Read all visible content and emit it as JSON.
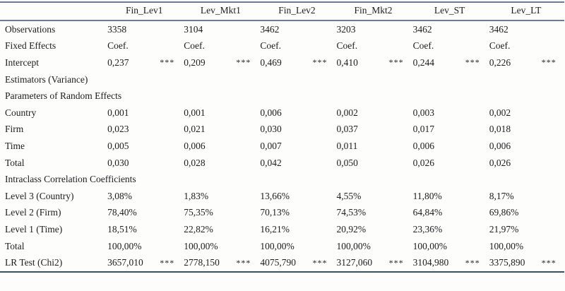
{
  "table": {
    "corner_label": "",
    "columns": [
      "Fin_Lev1",
      "Lev_Mkt1",
      "Fin_Lev2",
      "Fin_Mkt2",
      "Lev_ST",
      "Lev_LT"
    ],
    "rows": [
      {
        "type": "data",
        "label": "Observations",
        "values": [
          "3358",
          "3104",
          "3462",
          "3203",
          "3462",
          "3462"
        ],
        "stars": [
          "",
          "",
          "",
          "",
          "",
          ""
        ]
      },
      {
        "type": "data",
        "label": "Fixed Effects",
        "values": [
          "Coef.",
          "Coef.",
          "Coef.",
          "Coef.",
          "Coef.",
          "Coef."
        ],
        "stars": [
          "",
          "",
          "",
          "",
          "",
          ""
        ]
      },
      {
        "type": "data",
        "label": "Intercept",
        "values": [
          "0,237",
          "0,209",
          "0,469",
          "0,410",
          "0,244",
          "0,226"
        ],
        "stars": [
          "***",
          "***",
          "***",
          "***",
          "***",
          "***"
        ]
      },
      {
        "type": "section",
        "label": "Estimators (Variance)"
      },
      {
        "type": "section",
        "label": "Parameters of Random Effects"
      },
      {
        "type": "data",
        "label": "Country",
        "values": [
          "0,001",
          "0,001",
          "0,006",
          "0,002",
          "0,003",
          "0,002"
        ],
        "stars": [
          "",
          "",
          "",
          "",
          "",
          ""
        ]
      },
      {
        "type": "data",
        "label": "Firm",
        "values": [
          "0,023",
          "0,021",
          "0,030",
          "0,037",
          "0,017",
          "0,018"
        ],
        "stars": [
          "",
          "",
          "",
          "",
          "",
          ""
        ]
      },
      {
        "type": "data",
        "label": "Time",
        "values": [
          "0,005",
          "0,006",
          "0,007",
          "0,011",
          "0,006",
          "0,006"
        ],
        "stars": [
          "",
          "",
          "",
          "",
          "",
          ""
        ]
      },
      {
        "type": "data",
        "label": "Total",
        "values": [
          "0,030",
          "0,028",
          "0,042",
          "0,050",
          "0,026",
          "0,026"
        ],
        "stars": [
          "",
          "",
          "",
          "",
          "",
          ""
        ]
      },
      {
        "type": "section",
        "label": "Intraclass Correlation Coefficients"
      },
      {
        "type": "data",
        "label": "Level 3 (Country)",
        "values": [
          "3,08%",
          "1,83%",
          "13,66%",
          "4,55%",
          "11,80%",
          "8,17%"
        ],
        "stars": [
          "",
          "",
          "",
          "",
          "",
          ""
        ]
      },
      {
        "type": "data",
        "label": "Level 2 (Firm)",
        "values": [
          "78,40%",
          "75,35%",
          "70,13%",
          "74,53%",
          "64,84%",
          "69,86%"
        ],
        "stars": [
          "",
          "",
          "",
          "",
          "",
          ""
        ]
      },
      {
        "type": "data",
        "label": "Level 1 (Time)",
        "values": [
          "18,51%",
          "22,82%",
          "16,21%",
          "20,92%",
          "23,36%",
          "21,97%"
        ],
        "stars": [
          "",
          "",
          "",
          "",
          "",
          ""
        ]
      },
      {
        "type": "data",
        "label": "Total",
        "values": [
          "100,00%",
          "100,00%",
          "100,00%",
          "100,00%",
          "100,00%",
          "100,00%"
        ],
        "stars": [
          "",
          "",
          "",
          "",
          "",
          ""
        ]
      },
      {
        "type": "data",
        "label": "LR Test (Chi2)",
        "values": [
          "3657,010",
          "2778,150",
          "4075,790",
          "3127,060",
          "3104,980",
          "3375,890"
        ],
        "stars": [
          "***",
          "***",
          "***",
          "***",
          "***",
          "***"
        ]
      }
    ],
    "colors": {
      "rule_top": "#6b7e90",
      "rule_bottom": "#3a4f63",
      "text": "#1d1d20",
      "background": "#fdfdfc"
    }
  }
}
